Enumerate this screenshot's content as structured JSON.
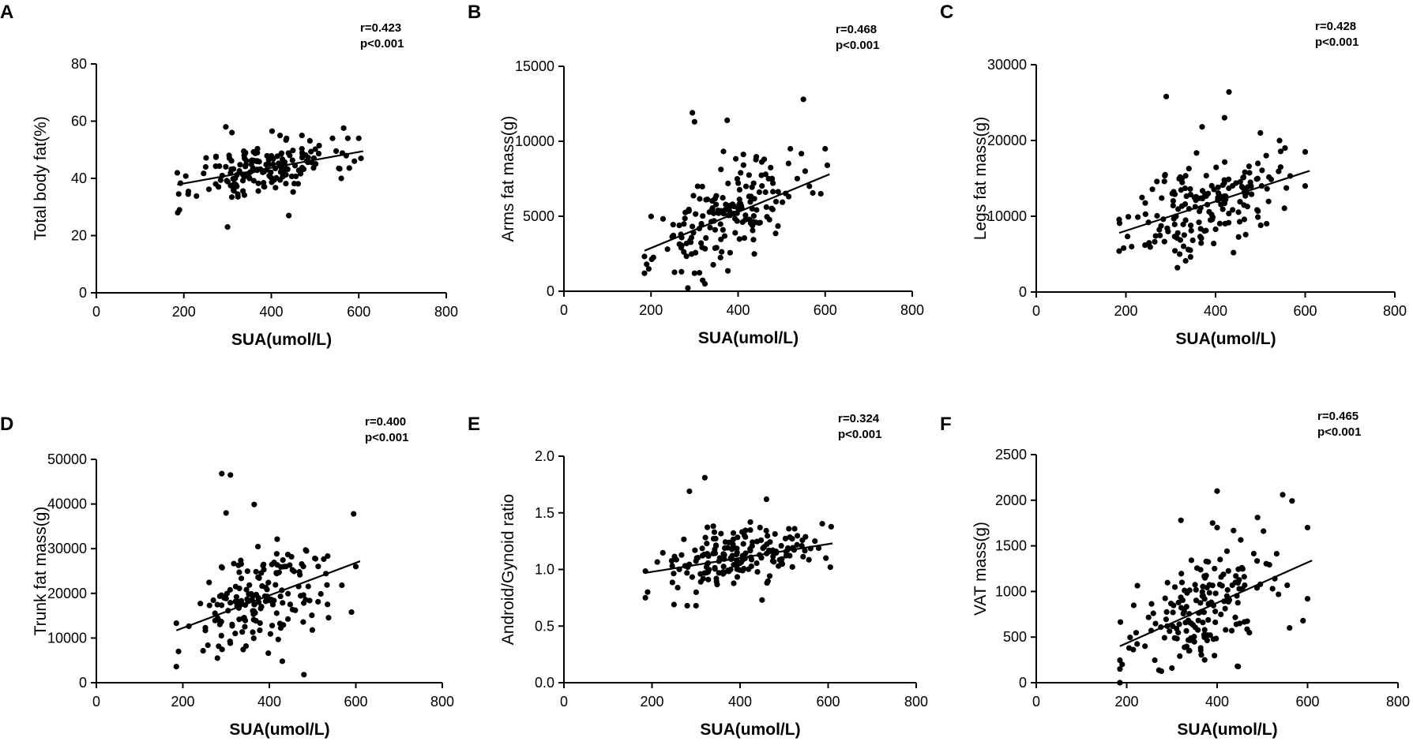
{
  "colors": {
    "points": "#000000",
    "axes": "#000000",
    "background": "#ffffff"
  },
  "chart_data": [
    {
      "type": "scatter",
      "panel": "A",
      "title": "",
      "xlabel": "SUA(umol/L)",
      "ylabel": "Total body fat(%)",
      "xlim": [
        0,
        800
      ],
      "ylim": [
        0,
        80
      ],
      "xticks": [
        0,
        200,
        400,
        600,
        800
      ],
      "yticks": [
        0,
        20,
        40,
        60,
        80
      ],
      "xtick_labels": [
        "0",
        "200",
        "400",
        "600",
        "800"
      ],
      "ytick_labels": [
        "0",
        "20",
        "40",
        "60",
        "80"
      ],
      "r_text": "r=0.423",
      "p_text": "p<0.001",
      "fit_line": {
        "x": [
          185,
          610
        ],
        "y": [
          37.8,
          49.5
        ]
      },
      "center": [
        385,
        44
      ],
      "spread": [
        78,
        5.5
      ],
      "n": 170,
      "seed": 11,
      "points": [
        [
          296,
          58
        ],
        [
          300,
          23
        ],
        [
          440,
          27
        ],
        [
          186,
          28
        ],
        [
          190,
          29
        ],
        [
          540,
          54
        ],
        [
          575,
          54
        ],
        [
          600,
          54
        ],
        [
          590,
          46
        ],
        [
          605,
          47
        ],
        [
          470,
          55
        ],
        [
          420,
          55
        ],
        [
          560,
          40
        ],
        [
          310,
          56
        ],
        [
          250,
          44
        ]
      ]
    },
    {
      "type": "scatter",
      "panel": "B",
      "title": "",
      "xlabel": "SUA(umol/L)",
      "ylabel": "Arms fat mass(g)",
      "xlim": [
        0,
        800
      ],
      "ylim": [
        0,
        15000
      ],
      "xticks": [
        0,
        200,
        400,
        600,
        800
      ],
      "yticks": [
        0,
        5000,
        10000,
        15000
      ],
      "xtick_labels": [
        "0",
        "200",
        "400",
        "600",
        "800"
      ],
      "ytick_labels": [
        "0",
        "5000",
        "10000",
        "15000"
      ],
      "r_text": "r=0.468",
      "p_text": "p<0.001",
      "fit_line": {
        "x": [
          185,
          610
        ],
        "y": [
          2700,
          7800
        ]
      },
      "center": [
        370,
        4800
      ],
      "spread": [
        80,
        1700
      ],
      "n": 170,
      "seed": 23,
      "points": [
        [
          550,
          12800
        ],
        [
          295,
          11900
        ],
        [
          300,
          11300
        ],
        [
          375,
          11400
        ],
        [
          185,
          1200
        ],
        [
          190,
          1800
        ],
        [
          600,
          9500
        ],
        [
          605,
          8400
        ],
        [
          590,
          6500
        ],
        [
          460,
          8800
        ],
        [
          520,
          9500
        ],
        [
          270,
          1300
        ],
        [
          300,
          1200
        ]
      ]
    },
    {
      "type": "scatter",
      "panel": "C",
      "title": "",
      "xlabel": "SUA(umol/L)",
      "ylabel": "Legs fat mass(g)",
      "xlim": [
        0,
        800
      ],
      "ylim": [
        0,
        30000
      ],
      "xticks": [
        0,
        200,
        400,
        600,
        800
      ],
      "yticks": [
        0,
        10000,
        20000,
        30000
      ],
      "xtick_labels": [
        "0",
        "200",
        "400",
        "600",
        "800"
      ],
      "ytick_labels": [
        "0",
        "10000",
        "20000",
        "30000"
      ],
      "r_text": "r=0.428",
      "p_text": "p<0.001",
      "fit_line": {
        "x": [
          185,
          610
        ],
        "y": [
          7800,
          16000
        ]
      },
      "center": [
        375,
        11800
      ],
      "spread": [
        80,
        3500
      ],
      "n": 175,
      "seed": 37,
      "points": [
        [
          290,
          25800
        ],
        [
          430,
          26400
        ],
        [
          420,
          23000
        ],
        [
          370,
          21800
        ],
        [
          500,
          21000
        ],
        [
          185,
          5400
        ],
        [
          195,
          5800
        ],
        [
          600,
          18500
        ],
        [
          555,
          19000
        ],
        [
          600,
          14000
        ],
        [
          440,
          5200
        ],
        [
          320,
          5000
        ]
      ]
    },
    {
      "type": "scatter",
      "panel": "D",
      "title": "",
      "xlabel": "SUA(umol/L)",
      "ylabel": "Trunk fat mass(g)",
      "xlim": [
        0,
        800
      ],
      "ylim": [
        0,
        50000
      ],
      "xticks": [
        0,
        200,
        400,
        600,
        800
      ],
      "yticks": [
        0,
        10000,
        20000,
        30000,
        40000,
        50000
      ],
      "xtick_labels": [
        "0",
        "200",
        "400",
        "600",
        "800"
      ],
      "ytick_labels": [
        "0",
        "10000",
        "20000",
        "30000",
        "40000",
        "50000"
      ],
      "r_text": "r=0.400",
      "p_text": "p<0.001",
      "fit_line": {
        "x": [
          185,
          610
        ],
        "y": [
          11700,
          27200
        ]
      },
      "center": [
        375,
        18500
      ],
      "spread": [
        80,
        6500
      ],
      "n": 170,
      "seed": 51,
      "points": [
        [
          290,
          46800
        ],
        [
          310,
          46500
        ],
        [
          365,
          39900
        ],
        [
          300,
          38000
        ],
        [
          595,
          37800
        ],
        [
          185,
          3600
        ],
        [
          190,
          7000
        ],
        [
          480,
          1800
        ],
        [
          430,
          4800
        ],
        [
          600,
          26000
        ],
        [
          590,
          15800
        ],
        [
          280,
          5500
        ]
      ]
    },
    {
      "type": "scatter",
      "panel": "E",
      "title": "",
      "xlabel": "SUA(umol/L)",
      "ylabel": "Android/Gynoid ratio",
      "xlim": [
        0,
        800
      ],
      "ylim": [
        0,
        2.0
      ],
      "xticks": [
        0,
        200,
        400,
        600,
        800
      ],
      "yticks": [
        0,
        0.5,
        1.0,
        1.5,
        2.0
      ],
      "xtick_labels": [
        "0",
        "200",
        "400",
        "600",
        "800"
      ],
      "ytick_labels": [
        "0.0",
        "0.5",
        "1.0",
        "1.5",
        "2.0"
      ],
      "r_text": "r=0.324",
      "p_text": "p<0.001",
      "fit_line": {
        "x": [
          185,
          610
        ],
        "y": [
          0.97,
          1.23
        ]
      },
      "center": [
        385,
        1.08
      ],
      "spread": [
        80,
        0.14
      ],
      "n": 175,
      "seed": 67,
      "points": [
        [
          320,
          1.81
        ],
        [
          285,
          1.69
        ],
        [
          460,
          1.62
        ],
        [
          185,
          0.75
        ],
        [
          190,
          0.8
        ],
        [
          250,
          0.69
        ],
        [
          280,
          0.68
        ],
        [
          300,
          0.68
        ],
        [
          450,
          0.73
        ],
        [
          605,
          1.02
        ],
        [
          595,
          1.1
        ],
        [
          570,
          1.25
        ]
      ]
    },
    {
      "type": "scatter",
      "panel": "F",
      "title": "",
      "xlabel": "SUA(umol/L)",
      "ylabel": "VAT mass(g)",
      "xlim": [
        0,
        800
      ],
      "ylim": [
        0,
        2500
      ],
      "xticks": [
        0,
        200,
        400,
        600,
        800
      ],
      "yticks": [
        0,
        500,
        1000,
        1500,
        2000,
        2500
      ],
      "xtick_labels": [
        "0",
        "200",
        "400",
        "600",
        "800"
      ],
      "ytick_labels": [
        "0",
        "500",
        "1000",
        "1500",
        "2000",
        "2500"
      ],
      "r_text": "r=0.465",
      "p_text": "p<0.001",
      "fit_line": {
        "x": [
          185,
          610
        ],
        "y": [
          400,
          1340
        ]
      },
      "center": [
        370,
        780
      ],
      "spread": [
        80,
        350
      ],
      "n": 175,
      "seed": 83,
      "points": [
        [
          400,
          2100
        ],
        [
          545,
          2060
        ],
        [
          390,
          1750
        ],
        [
          400,
          1700
        ],
        [
          600,
          1700
        ],
        [
          185,
          150
        ],
        [
          190,
          200
        ],
        [
          600,
          920
        ],
        [
          590,
          680
        ],
        [
          445,
          180
        ],
        [
          320,
          1780
        ],
        [
          300,
          160
        ]
      ]
    }
  ]
}
